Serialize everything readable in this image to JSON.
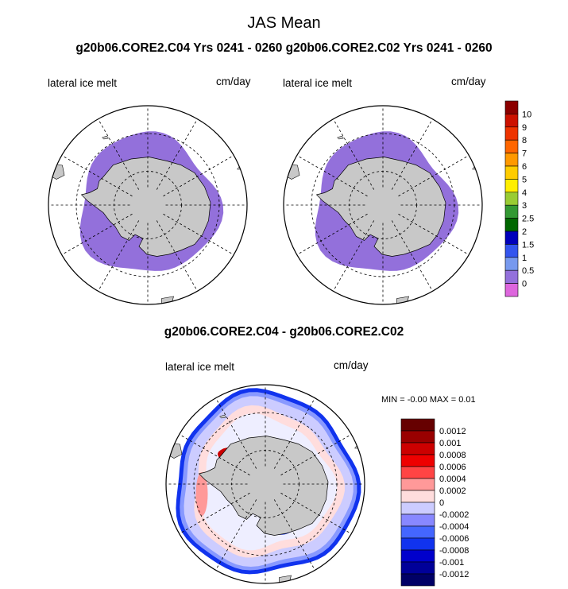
{
  "figure": {
    "title": "JAS Mean",
    "subtitle": "g20b06.CORE2.C04  Yrs 0241 - 0260 g20b06.CORE2.C02  Yrs 0241 - 0260",
    "diff_title": "g20b06.CORE2.C04 - g20b06.CORE2.C02"
  },
  "panels": [
    {
      "variable": "lateral ice melt",
      "units": "cm/day"
    },
    {
      "variable": "lateral ice melt",
      "units": "cm/day"
    },
    {
      "variable": "lateral ice melt",
      "units": "cm/day"
    }
  ],
  "stats": {
    "min_label": "MIN =",
    "min_value": "-0.00",
    "max_label": "MAX =",
    "max_value": "0.01"
  },
  "colors": {
    "ice_melt": "#9370db",
    "land": "#c8c8c8",
    "ocean": "#ffffff"
  },
  "chart_data": [
    {
      "type": "heatmap",
      "projection": "south polar stereographic",
      "title": "lateral ice melt",
      "units": "cm/day",
      "description_of_field": "uniform lowest bin (0 - 0.5 cm/day) across Antarctic sea-ice zone",
      "colorbar": {
        "labels": [
          "10",
          "9",
          "8",
          "7",
          "6",
          "5",
          "4",
          "3",
          "2.5",
          "2",
          "1.5",
          "1",
          "0.5",
          "0"
        ],
        "colors": [
          "#8b0000",
          "#cc1100",
          "#ee3300",
          "#ff6600",
          "#ff9900",
          "#ffcc00",
          "#ffee00",
          "#99cc33",
          "#339933",
          "#006600",
          "#0000bb",
          "#3355ee",
          "#7799ee",
          "#9370db",
          "#dd66dd"
        ]
      }
    },
    {
      "type": "heatmap",
      "projection": "south polar stereographic",
      "title": "lateral ice melt",
      "units": "cm/day",
      "description_of_field": "uniform lowest bin (0 - 0.5 cm/day) across Antarctic sea-ice zone",
      "colorbar_ref": 0
    },
    {
      "type": "heatmap",
      "projection": "south polar stereographic",
      "title": "lateral ice melt",
      "units": "cm/day",
      "min": -0.0,
      "max": 0.01,
      "colorbar": {
        "labels": [
          "0.0012",
          "0.001",
          "0.0008",
          "0.0006",
          "0.0004",
          "0.0002",
          "0",
          "-0.0002",
          "-0.0004",
          "-0.0006",
          "-0.0008",
          "-0.001",
          "-0.0012"
        ],
        "colors": [
          "#660000",
          "#990000",
          "#cc0000",
          "#ee0000",
          "#ff4444",
          "#ff9999",
          "#ffdddd",
          "#ccccff",
          "#8888ff",
          "#4466ff",
          "#1133ee",
          "#0000cc",
          "#000099",
          "#000066"
        ]
      }
    }
  ]
}
